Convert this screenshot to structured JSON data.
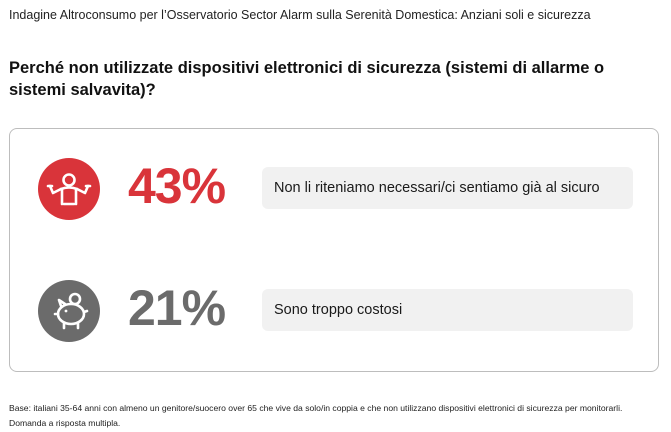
{
  "header": {
    "title": "Indagine Altroconsumo per l’Osservatorio Sector Alarm sulla Serenità Domestica: Anziani soli e sicurezza"
  },
  "question": {
    "text": "Perché non utilizzate dispositivi elettronici di sicurezza (sistemi di allarme o sistemi salvavita)?"
  },
  "results": [
    {
      "percent": "43%",
      "answer": "Non li riteniamo necessari/ci sentiamo già al sicuro",
      "icon": "shrugging-person-icon",
      "color": "#d9343a"
    },
    {
      "percent": "21%",
      "answer": "Sono troppo costosi",
      "icon": "piggy-bank-icon",
      "color": "#6b6b6b"
    }
  ],
  "footnote": {
    "line1": "Base: italiani 35-64 anni con almeno un genitore/suocero over 65 che vive da solo/in coppia e che non utilizzano dispositivi elettronici di sicurezza per monitorarli.",
    "line2": "Domanda a risposta multipla."
  }
}
